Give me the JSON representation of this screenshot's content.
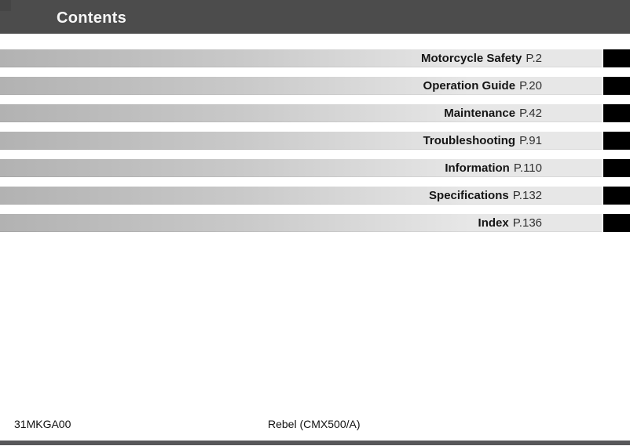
{
  "header": {
    "title": "Contents"
  },
  "toc": {
    "items": [
      {
        "label": "Motorcycle Safety",
        "page": "P.2"
      },
      {
        "label": "Operation Guide",
        "page": "P.20"
      },
      {
        "label": "Maintenance",
        "page": "P.42"
      },
      {
        "label": "Troubleshooting",
        "page": "P.91"
      },
      {
        "label": "Information",
        "page": "P.110"
      },
      {
        "label": "Specifications",
        "page": "P.132"
      },
      {
        "label": "Index",
        "page": "P.136"
      }
    ]
  },
  "footer": {
    "code": "31MKGA00",
    "model": "Rebel (CMX500/A)"
  },
  "colors": {
    "header_bg": "#4c4c4c",
    "header_corner": "#454545",
    "bar_gradient_start": "#b2b2b2",
    "bar_gradient_end": "#e7e7e7",
    "tab": "#000000",
    "bottom_bar": "#58585a"
  }
}
